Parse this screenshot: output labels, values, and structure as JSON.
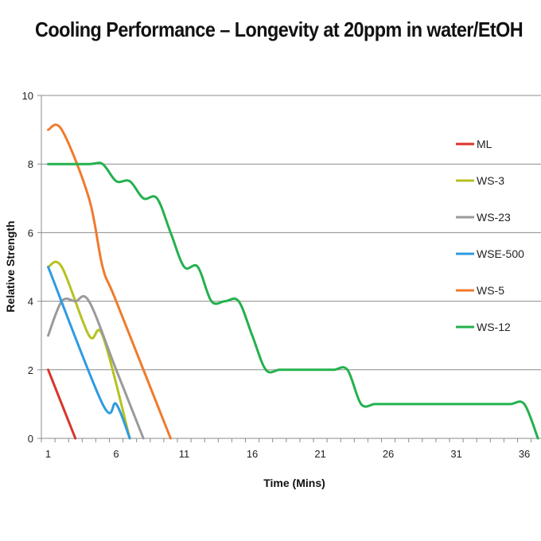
{
  "chart_data": {
    "type": "line",
    "title": "Cooling Performance – Longevity at 20ppm in water/EtOH",
    "xlabel": "Time (Mins)",
    "ylabel": "Relative Strength",
    "xlim": [
      1,
      38
    ],
    "ylim": [
      0,
      10
    ],
    "x_ticks": [
      1,
      6,
      11,
      16,
      21,
      26,
      31,
      36
    ],
    "y_ticks": [
      0,
      2,
      4,
      6,
      8,
      10
    ],
    "grid": "horizontal",
    "legend_position": "right",
    "series": [
      {
        "name": "ML",
        "color": "#d9342b",
        "points": [
          [
            1,
            2
          ],
          [
            3,
            0
          ]
        ]
      },
      {
        "name": "WS-3",
        "color": "#b5c21f",
        "points": [
          [
            1,
            5
          ],
          [
            2,
            5
          ],
          [
            4,
            3
          ],
          [
            5,
            3
          ],
          [
            7,
            0
          ]
        ]
      },
      {
        "name": "WS-23",
        "color": "#9a9a9a",
        "points": [
          [
            1,
            3
          ],
          [
            2,
            4
          ],
          [
            3,
            4
          ],
          [
            4,
            4
          ],
          [
            6,
            2
          ],
          [
            8,
            0
          ]
        ]
      },
      {
        "name": "WSE-500",
        "color": "#2e9be0",
        "points": [
          [
            1,
            5
          ],
          [
            5,
            1
          ],
          [
            6,
            1
          ],
          [
            7,
            0
          ]
        ]
      },
      {
        "name": "WS-5",
        "color": "#f07a2c",
        "points": [
          [
            1,
            9
          ],
          [
            2,
            9
          ],
          [
            4,
            7
          ],
          [
            5,
            5
          ],
          [
            6,
            4
          ],
          [
            10,
            0
          ]
        ]
      },
      {
        "name": "WS-12",
        "color": "#23b14d",
        "points": [
          [
            1,
            8
          ],
          [
            4,
            8
          ],
          [
            5,
            8
          ],
          [
            6,
            7.5
          ],
          [
            7,
            7.5
          ],
          [
            8,
            7
          ],
          [
            9,
            7
          ],
          [
            10,
            6
          ],
          [
            11,
            5
          ],
          [
            12,
            5
          ],
          [
            13,
            4
          ],
          [
            14,
            4
          ],
          [
            15,
            4
          ],
          [
            16,
            3
          ],
          [
            17,
            2
          ],
          [
            18,
            2
          ],
          [
            19,
            2
          ],
          [
            20,
            2
          ],
          [
            21,
            2
          ],
          [
            22,
            2
          ],
          [
            23,
            2
          ],
          [
            24,
            1
          ],
          [
            25,
            1
          ],
          [
            26,
            1
          ],
          [
            27,
            1
          ],
          [
            28,
            1
          ],
          [
            29,
            1
          ],
          [
            30,
            1
          ],
          [
            31,
            1
          ],
          [
            32,
            1
          ],
          [
            33,
            1
          ],
          [
            34,
            1
          ],
          [
            35,
            1
          ],
          [
            36,
            1
          ],
          [
            37,
            0
          ]
        ]
      }
    ]
  }
}
